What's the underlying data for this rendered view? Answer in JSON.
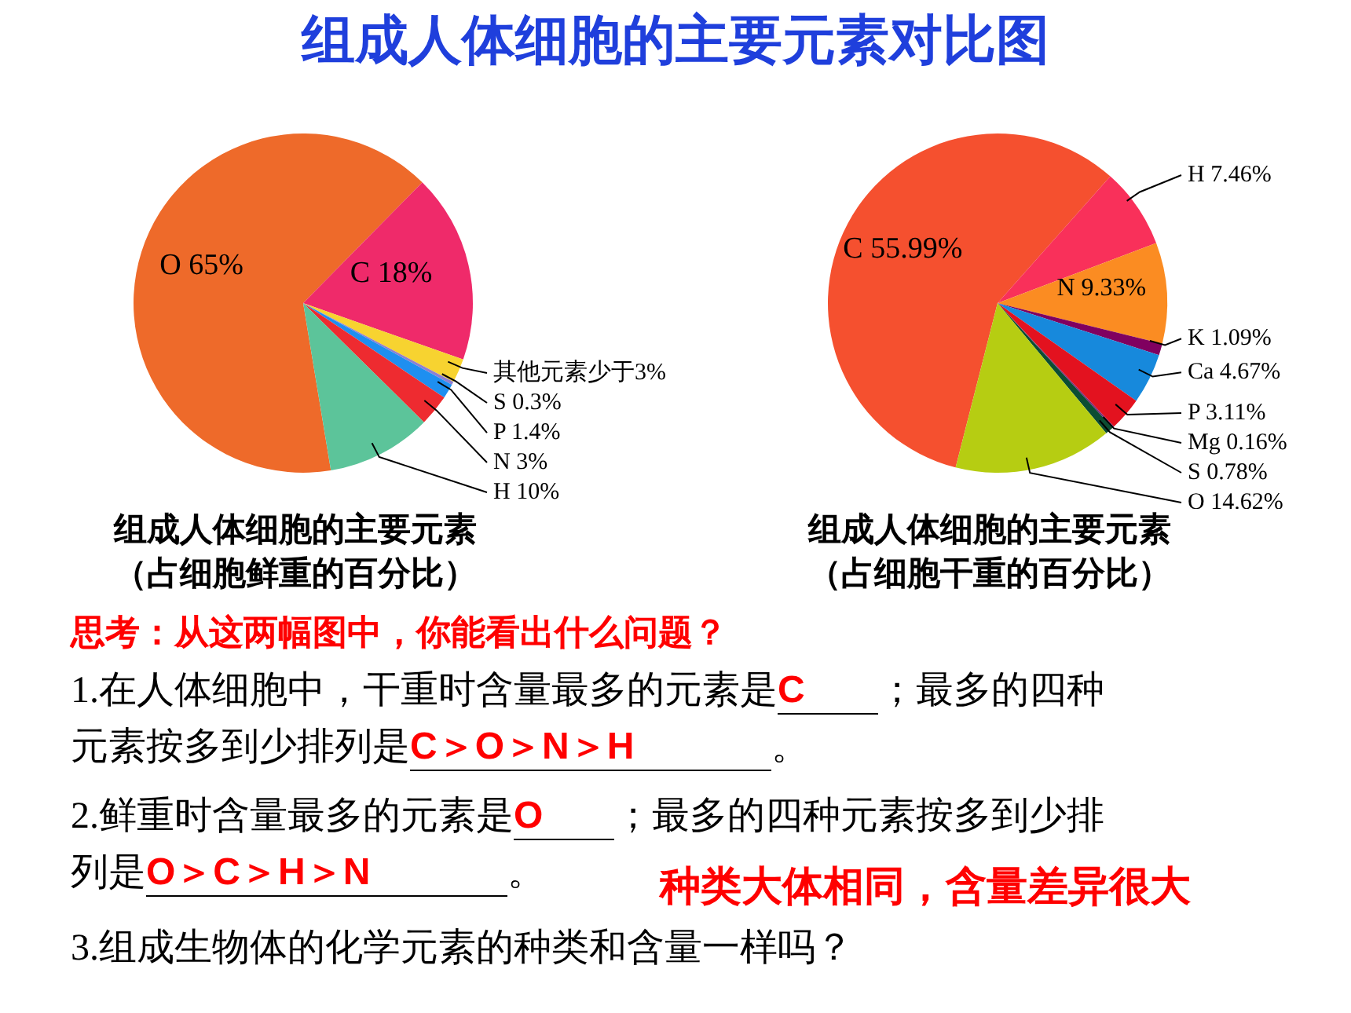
{
  "chart_data": [
    {
      "type": "other",
      "title": "组成人体细胞的主要元素对比图"
    },
    {
      "type": "pie",
      "title": "组成人体细胞的主要元素",
      "subtitle": "（占细胞鲜重的百分比）",
      "categories": [
        "O",
        "C",
        "其他元素少于3%",
        "S",
        "P",
        "N",
        "H"
      ],
      "values": [
        65,
        18,
        2.3,
        0.3,
        1.4,
        3,
        10
      ],
      "value_labels": [
        "65%",
        "18%",
        null,
        "0.3%",
        "1.4%",
        "3%",
        "10%"
      ],
      "colors": [
        "#ee6a2a",
        "#ef2a6a",
        "#f7d330",
        "#8f7fd0",
        "#1e8ff0",
        "#ee2b30",
        "#5cc49a"
      ]
    },
    {
      "type": "pie",
      "title": "组成人体细胞的主要元素",
      "subtitle": "（占细胞干重的百分比）",
      "categories": [
        "C",
        "H",
        "N",
        "K",
        "Ca",
        "P",
        "Mg",
        "S",
        "O"
      ],
      "values": [
        55.99,
        7.46,
        9.33,
        1.09,
        4.67,
        3.11,
        0.16,
        0.78,
        14.62
      ],
      "value_labels": [
        "55.99%",
        "7.46%",
        "9.33%",
        "1.09%",
        "4.67%",
        "3.11%",
        "0.16%",
        "0.78%",
        "14.62%"
      ],
      "colors": [
        "#f5502f",
        "#f9305a",
        "#fb8c22",
        "#800060",
        "#1789dc",
        "#e3121f",
        "#7a2a7a",
        "#0b4d33",
        "#b6cd12"
      ]
    },
    {
      "type": "other",
      "annotations": [
        "思考：从这两幅图中，你能看出什么问题？",
        "1.在人体细胞中，干重时含量最多的元素是",
        "C",
        "；最多的四种",
        "元素按多到少排列是",
        "C＞O＞N＞H",
        "。",
        "2.鲜重时含量最多的元素是",
        "O",
        "；最多的四种元素按多到少排",
        "列是",
        "O＞C＞H＞N",
        "。",
        "种类大体相同，含量差异很大",
        "3.组成生物体的化学元素的种类和含量一样吗？"
      ]
    }
  ]
}
